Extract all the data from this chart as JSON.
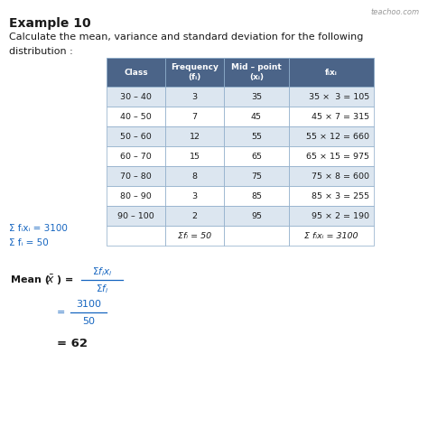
{
  "title": "Example 10",
  "subtitle_line1": "Calculate the mean, variance and standard deviation for the following",
  "subtitle_line2": "distribution :",
  "watermark": "teachoo.com",
  "table": {
    "headers": [
      "Class",
      "Frequency\n(fᵢ)",
      "Mid – point\n(xᵢ)",
      "fᵢxᵢ"
    ],
    "rows": [
      [
        "30 – 40",
        "3",
        "35",
        "35 ×  3 = 105"
      ],
      [
        "40 – 50",
        "7",
        "45",
        "45 × 7 = 315"
      ],
      [
        "50 – 60",
        "12",
        "55",
        "55 × 12 = 660"
      ],
      [
        "60 – 70",
        "15",
        "65",
        "65 × 15 = 975"
      ],
      [
        "70 – 80",
        "8",
        "75",
        "75 × 8 = 600"
      ],
      [
        "80 – 90",
        "3",
        "85",
        "85 × 3 = 255"
      ],
      [
        "90 – 100",
        "2",
        "95",
        "95 × 2 = 190"
      ]
    ],
    "footer_col1": "",
    "footer_col2": "Σfᵢ = 50",
    "footer_col3": "",
    "footer_col4": "Σ fᵢxᵢ = 3100",
    "header_color": "#4b6488",
    "header_text_color": "#ffffff",
    "row_color_light": "#dce6f0",
    "row_color_white": "#ffffff",
    "border_color": "#8baac8"
  },
  "sum_fixi": "Σ fᵢxᵢ = 3100",
  "sum_fi": "Σ fᵢ = 50",
  "mean_text_color": "#1565c0",
  "background_color": "#ffffff",
  "text_color": "#1a1a1a"
}
